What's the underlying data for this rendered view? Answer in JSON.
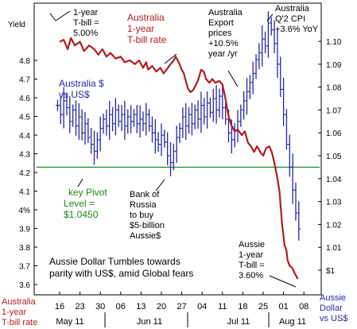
{
  "chart_data": {
    "type": "line",
    "title": "Aussie Dollar Tumbles towards parity with US$, amid Global fears",
    "x_categories": [
      "16",
      "23",
      "30",
      "06",
      "13",
      "20",
      "27",
      "04",
      "11",
      "18",
      "25",
      "01",
      "08"
    ],
    "x_months": [
      "May 11",
      "Jun 11",
      "Jul 11",
      "Aug 11"
    ],
    "left_axis": {
      "label": "Yield",
      "ticks": [
        "4.8",
        "4.7",
        "4.6",
        "4.5",
        "4.4",
        "4.3",
        "4.2",
        "4.1",
        "4%",
        "3.9",
        "3.8",
        "3.7",
        "3.6"
      ],
      "ylim": [
        3.6,
        4.98
      ]
    },
    "right_axis": {
      "ticks": [
        "1.10",
        "1.09",
        "1.08",
        "1.07",
        "1.06",
        "1.05",
        "1.04",
        "1.03",
        "1.02",
        "1.01",
        "$1"
      ],
      "ylim": [
        0.995,
        1.115
      ]
    },
    "pivot_level": 1.045,
    "series": [
      {
        "name": "Australia 1-year T-bill rate",
        "color": "#b01e1e",
        "axis": "left",
        "points": [
          [
            0,
            4.9
          ],
          [
            0.2,
            4.91
          ],
          [
            0.4,
            4.86
          ],
          [
            0.55,
            4.92
          ],
          [
            0.75,
            4.88
          ],
          [
            1.0,
            4.9
          ],
          [
            1.2,
            4.85
          ],
          [
            1.45,
            4.88
          ],
          [
            1.7,
            4.86
          ],
          [
            1.9,
            4.83
          ],
          [
            2.1,
            4.86
          ],
          [
            2.3,
            4.82
          ],
          [
            2.5,
            4.84
          ],
          [
            2.75,
            4.81
          ],
          [
            3.0,
            4.82
          ],
          [
            3.2,
            4.79
          ],
          [
            3.45,
            4.8
          ],
          [
            3.7,
            4.78
          ],
          [
            3.9,
            4.8
          ],
          [
            4.1,
            4.76
          ],
          [
            4.25,
            4.79
          ],
          [
            4.35,
            4.75
          ],
          [
            4.55,
            4.77
          ],
          [
            4.75,
            4.74
          ],
          [
            4.95,
            4.76
          ],
          [
            5.1,
            4.73
          ],
          [
            5.25,
            4.75
          ],
          [
            5.45,
            4.78
          ],
          [
            5.6,
            4.8
          ],
          [
            5.7,
            4.82
          ],
          [
            5.85,
            4.79
          ],
          [
            6.0,
            4.75
          ],
          [
            6.1,
            4.73
          ],
          [
            6.2,
            4.69
          ],
          [
            6.3,
            4.65
          ],
          [
            6.42,
            4.63
          ],
          [
            6.55,
            4.64
          ],
          [
            6.7,
            4.67
          ],
          [
            6.82,
            4.7
          ],
          [
            6.95,
            4.75
          ],
          [
            7.08,
            4.74
          ],
          [
            7.2,
            4.7
          ],
          [
            7.35,
            4.68
          ],
          [
            7.5,
            4.7
          ],
          [
            7.65,
            4.68
          ],
          [
            7.85,
            4.69
          ],
          [
            8.0,
            4.67
          ],
          [
            8.12,
            4.61
          ],
          [
            8.3,
            4.5
          ],
          [
            8.45,
            4.45
          ],
          [
            8.6,
            4.42
          ],
          [
            8.75,
            4.43
          ],
          [
            8.95,
            4.4
          ],
          [
            9.1,
            4.42
          ],
          [
            9.25,
            4.36
          ],
          [
            9.4,
            4.34
          ],
          [
            9.55,
            4.31
          ],
          [
            9.7,
            4.34
          ],
          [
            9.85,
            4.31
          ],
          [
            10.0,
            4.29
          ],
          [
            10.15,
            4.33
          ],
          [
            10.3,
            4.34
          ],
          [
            10.42,
            4.31
          ],
          [
            10.55,
            4.25
          ],
          [
            10.68,
            4.18
          ],
          [
            10.8,
            4.1
          ],
          [
            10.92,
            3.93
          ],
          [
            11.05,
            3.81
          ],
          [
            11.15,
            3.78
          ],
          [
            11.2,
            3.73
          ],
          [
            11.3,
            3.7
          ],
          [
            11.42,
            3.69
          ],
          [
            11.55,
            3.66
          ],
          [
            11.7,
            3.63
          ]
        ]
      },
      {
        "name": "Australia $ vs US$",
        "color": "#2626a8",
        "axis": "right",
        "points": [
          [
            -0.1,
            1.072
          ],
          [
            0.05,
            1.068
          ],
          [
            0.2,
            1.074
          ],
          [
            0.35,
            1.071
          ],
          [
            0.5,
            1.065
          ],
          [
            0.65,
            1.07
          ],
          [
            0.8,
            1.063
          ],
          [
            0.95,
            1.067
          ],
          [
            1.1,
            1.06
          ],
          [
            1.25,
            1.064
          ],
          [
            1.4,
            1.058
          ],
          [
            1.55,
            1.055
          ],
          [
            1.7,
            1.052
          ],
          [
            1.85,
            1.057
          ],
          [
            2.0,
            1.062
          ],
          [
            2.15,
            1.066
          ],
          [
            2.3,
            1.063
          ],
          [
            2.45,
            1.068
          ],
          [
            2.6,
            1.064
          ],
          [
            2.75,
            1.07
          ],
          [
            2.9,
            1.065
          ],
          [
            3.05,
            1.068
          ],
          [
            3.2,
            1.063
          ],
          [
            3.35,
            1.067
          ],
          [
            3.5,
            1.065
          ],
          [
            3.65,
            1.068
          ],
          [
            3.8,
            1.064
          ],
          [
            3.95,
            1.066
          ],
          [
            4.1,
            1.064
          ],
          [
            4.25,
            1.068
          ],
          [
            4.4,
            1.063
          ],
          [
            4.55,
            1.06
          ],
          [
            4.7,
            1.057
          ],
          [
            4.85,
            1.055
          ],
          [
            5.0,
            1.059
          ],
          [
            5.15,
            1.056
          ],
          [
            5.3,
            1.05
          ],
          [
            5.45,
            1.047
          ],
          [
            5.6,
            1.052
          ],
          [
            5.75,
            1.058
          ],
          [
            5.9,
            1.062
          ],
          [
            6.05,
            1.067
          ],
          [
            6.2,
            1.063
          ],
          [
            6.35,
            1.068
          ],
          [
            6.5,
            1.064
          ],
          [
            6.65,
            1.07
          ],
          [
            6.8,
            1.066
          ],
          [
            6.95,
            1.072
          ],
          [
            7.1,
            1.067
          ],
          [
            7.25,
            1.073
          ],
          [
            7.4,
            1.069
          ],
          [
            7.55,
            1.075
          ],
          [
            7.7,
            1.07
          ],
          [
            7.85,
            1.076
          ],
          [
            8.0,
            1.071
          ],
          [
            8.15,
            1.066
          ],
          [
            8.3,
            1.06
          ],
          [
            8.45,
            1.057
          ],
          [
            8.6,
            1.061
          ],
          [
            8.75,
            1.065
          ],
          [
            8.9,
            1.07
          ],
          [
            9.05,
            1.074
          ],
          [
            9.2,
            1.078
          ],
          [
            9.35,
            1.082
          ],
          [
            9.5,
            1.086
          ],
          [
            9.65,
            1.092
          ],
          [
            9.8,
            1.095
          ],
          [
            9.95,
            1.101
          ],
          [
            10.1,
            1.098
          ],
          [
            10.25,
            1.108
          ],
          [
            10.4,
            1.105
          ],
          [
            10.55,
            1.099
          ],
          [
            10.7,
            1.09
          ],
          [
            10.85,
            1.079
          ],
          [
            11.0,
            1.068
          ],
          [
            11.15,
            1.055
          ],
          [
            11.3,
            1.045
          ],
          [
            11.45,
            1.035
          ],
          [
            11.6,
            1.025
          ],
          [
            11.75,
            1.018
          ]
        ]
      }
    ],
    "annotations": [
      "1-year T-bill = 5.00%",
      "Australia 1-year T-bill rate",
      "Australia Export prices +10.5% year /yr",
      "Australia Q'2 CPI +3.6% YoY",
      "Australia $ vs US$",
      "key Pivot Level = $1.0450",
      "Bank of Russia to buy $5-billion Aussie$",
      "Aussie 1-year T-bill = 3.60%"
    ],
    "bottom_left_label": [
      "Australia",
      "1-year",
      "T-bill rate"
    ],
    "bottom_right_label": [
      "Aussie",
      "Dollar",
      "vs US$"
    ],
    "grid": false
  }
}
